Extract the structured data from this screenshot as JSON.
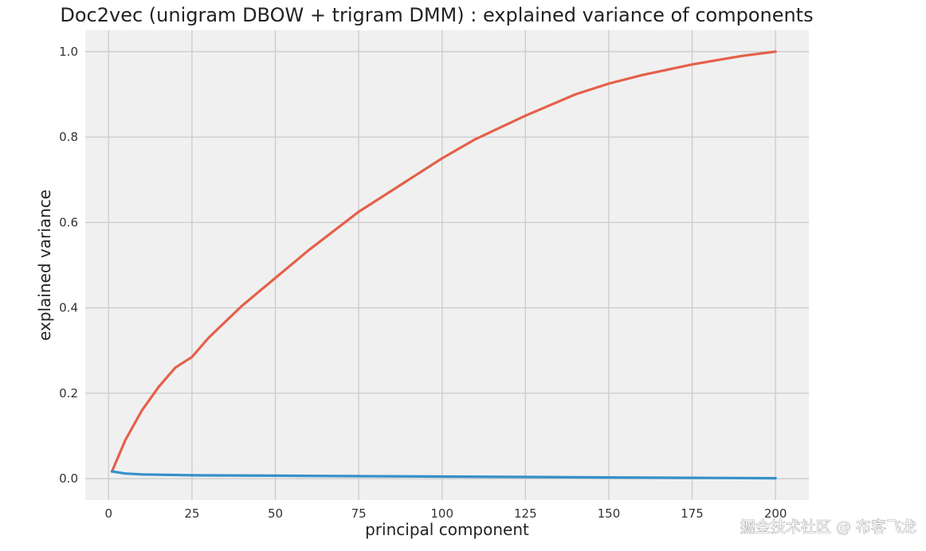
{
  "chart_data": {
    "type": "line",
    "title": "Doc2vec (unigram DBOW + trigram DMM) : explained variance of components",
    "xlabel": "principal component",
    "ylabel": "explained variance",
    "xlim": [
      -7,
      210
    ],
    "ylim": [
      -0.05,
      1.05
    ],
    "xticks": [
      0,
      25,
      50,
      75,
      100,
      125,
      150,
      175,
      200
    ],
    "yticks": [
      0.0,
      0.2,
      0.4,
      0.6,
      0.8,
      1.0
    ],
    "ytick_labels": [
      "0.0",
      "0.2",
      "0.4",
      "0.6",
      "0.8",
      "1.0"
    ],
    "grid": true,
    "colors": {
      "background": "#f0f0f0",
      "grid": "#cbcbcb",
      "cumulative": "#e5604a",
      "individual": "#3591c8"
    },
    "series": [
      {
        "x": [
          1,
          5,
          10,
          15,
          20,
          25,
          30,
          40,
          50,
          60,
          75,
          90,
          100,
          110,
          125,
          140,
          150,
          160,
          175,
          190,
          200
        ],
        "values": [
          0.017,
          0.09,
          0.16,
          0.215,
          0.26,
          0.285,
          0.33,
          0.405,
          0.47,
          0.535,
          0.625,
          0.7,
          0.75,
          0.795,
          0.85,
          0.9,
          0.925,
          0.945,
          0.97,
          0.99,
          1.0
        ]
      },
      {
        "x": [
          1,
          5,
          10,
          25,
          50,
          75,
          100,
          125,
          150,
          175,
          200
        ],
        "values": [
          0.017,
          0.012,
          0.01,
          0.008,
          0.007,
          0.006,
          0.005,
          0.004,
          0.003,
          0.002,
          0.001
        ]
      }
    ]
  },
  "watermark": "掘金技术社区 @ 布客飞龙"
}
